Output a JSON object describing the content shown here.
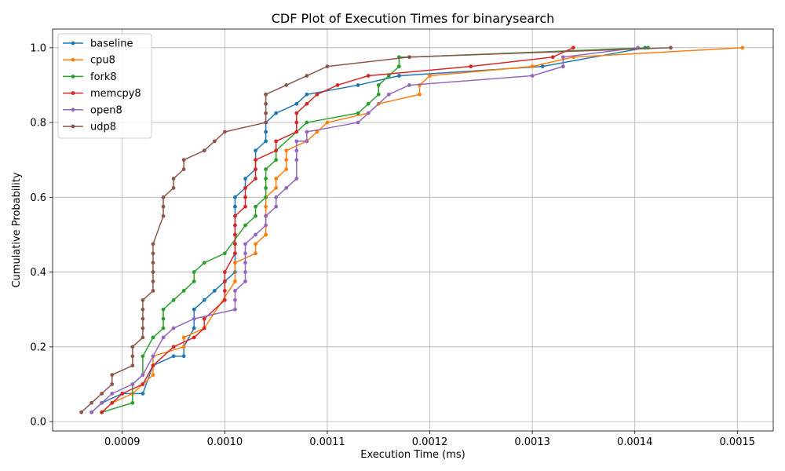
{
  "chart_data": {
    "type": "line",
    "title": "CDF Plot of Execution Times for binarysearch",
    "xlabel": "Execution Time (ms)",
    "ylabel": "Cumulative Probability",
    "xlim": [
      0.000832,
      0.001535
    ],
    "ylim": [
      -0.025,
      1.05
    ],
    "xticks": [
      0.0009,
      0.001,
      0.0011,
      0.0012,
      0.0013,
      0.0014,
      0.0015
    ],
    "xtick_labels": [
      "0.0009",
      "0.0010",
      "0.0011",
      "0.0012",
      "0.0013",
      "0.0014",
      "0.0015"
    ],
    "yticks": [
      0.0,
      0.2,
      0.4,
      0.6,
      0.8,
      1.0
    ],
    "ytick_labels": [
      "0.0",
      "0.2",
      "0.4",
      "0.6",
      "0.8",
      "1.0"
    ],
    "grid": true,
    "legend_position": "top-left",
    "series": [
      {
        "name": "baseline",
        "color": "#1f77b4",
        "x": [
          0.00087,
          0.00088,
          0.0009,
          0.00092,
          0.00093,
          0.00095,
          0.00096,
          0.00096,
          0.00097,
          0.00097,
          0.00097,
          0.00098,
          0.00099,
          0.001,
          0.00101,
          0.00101,
          0.00101,
          0.00101,
          0.00101,
          0.00101,
          0.00101,
          0.00101,
          0.00101,
          0.00101,
          0.00102,
          0.00102,
          0.00103,
          0.00103,
          0.00104,
          0.00104,
          0.00104,
          0.00104,
          0.00105,
          0.00107,
          0.00108,
          0.00113,
          0.00117,
          0.00117,
          0.00131,
          0.00141
        ],
        "y": [
          0.025,
          0.05,
          0.075,
          0.075,
          0.15,
          0.175,
          0.175,
          0.2,
          0.25,
          0.275,
          0.3,
          0.325,
          0.35,
          0.375,
          0.4,
          0.425,
          0.45,
          0.475,
          0.5,
          0.525,
          0.55,
          0.575,
          0.575,
          0.6,
          0.625,
          0.65,
          0.675,
          0.725,
          0.75,
          0.775,
          0.8,
          0.8,
          0.825,
          0.85,
          0.875,
          0.9,
          0.925,
          0.925,
          0.95,
          1.0
        ]
      },
      {
        "name": "cpu8",
        "color": "#ff7f0e",
        "x": [
          0.00088,
          0.00089,
          0.00091,
          0.00092,
          0.00093,
          0.00093,
          0.00096,
          0.00096,
          0.00098,
          0.00101,
          0.00101,
          0.00103,
          0.00103,
          0.00104,
          0.00104,
          0.00104,
          0.00104,
          0.00105,
          0.00105,
          0.00106,
          0.00106,
          0.00106,
          0.00108,
          0.00109,
          0.0011,
          0.00114,
          0.00115,
          0.00119,
          0.00119,
          0.0012,
          0.0013,
          0.00134,
          0.001505
        ],
        "y": [
          0.025,
          0.05,
          0.075,
          0.1,
          0.125,
          0.175,
          0.2,
          0.225,
          0.25,
          0.375,
          0.425,
          0.45,
          0.475,
          0.5,
          0.55,
          0.575,
          0.6,
          0.625,
          0.65,
          0.675,
          0.7,
          0.725,
          0.75,
          0.775,
          0.8,
          0.825,
          0.85,
          0.875,
          0.9,
          0.925,
          0.95,
          0.975,
          1.0
        ]
      },
      {
        "name": "fork8",
        "color": "#2ca02c",
        "x": [
          0.00088,
          0.00091,
          0.00091,
          0.00092,
          0.00092,
          0.00093,
          0.00094,
          0.00094,
          0.00094,
          0.00095,
          0.00096,
          0.00097,
          0.00097,
          0.00098,
          0.001,
          0.00102,
          0.00103,
          0.00103,
          0.00104,
          0.00104,
          0.00104,
          0.00104,
          0.00105,
          0.00105,
          0.00107,
          0.00108,
          0.00113,
          0.00114,
          0.00115,
          0.00115,
          0.00116,
          0.00117,
          0.00117,
          0.00118,
          0.001413
        ],
        "y": [
          0.025,
          0.05,
          0.1,
          0.125,
          0.175,
          0.225,
          0.25,
          0.275,
          0.3,
          0.325,
          0.35,
          0.375,
          0.4,
          0.425,
          0.45,
          0.525,
          0.55,
          0.575,
          0.6,
          0.625,
          0.65,
          0.675,
          0.7,
          0.725,
          0.775,
          0.8,
          0.825,
          0.85,
          0.875,
          0.9,
          0.925,
          0.95,
          0.975,
          0.975,
          1.0
        ]
      },
      {
        "name": "memcpy8",
        "color": "#d62728",
        "x": [
          0.00088,
          0.00089,
          0.0009,
          0.00092,
          0.00093,
          0.00095,
          0.00097,
          0.00098,
          0.00098,
          0.001,
          0.001,
          0.001,
          0.001,
          0.00101,
          0.00101,
          0.00101,
          0.00101,
          0.00101,
          0.00102,
          0.00102,
          0.00102,
          0.00103,
          0.00103,
          0.00103,
          0.00105,
          0.00105,
          0.00107,
          0.00107,
          0.00107,
          0.00108,
          0.00109,
          0.00111,
          0.00114,
          0.00124,
          0.00132,
          0.00134
        ],
        "y": [
          0.025,
          0.05,
          0.075,
          0.1,
          0.15,
          0.2,
          0.225,
          0.25,
          0.275,
          0.325,
          0.35,
          0.375,
          0.4,
          0.45,
          0.475,
          0.5,
          0.525,
          0.55,
          0.575,
          0.6,
          0.625,
          0.65,
          0.675,
          0.7,
          0.725,
          0.75,
          0.775,
          0.8,
          0.825,
          0.85,
          0.875,
          0.9,
          0.925,
          0.95,
          0.975,
          1.0
        ]
      },
      {
        "name": "open8",
        "color": "#9467bd",
        "x": [
          0.00087,
          0.00088,
          0.00089,
          0.00091,
          0.00092,
          0.00093,
          0.00094,
          0.00095,
          0.00097,
          0.00101,
          0.00101,
          0.00101,
          0.00102,
          0.00102,
          0.00102,
          0.00102,
          0.00102,
          0.00103,
          0.00104,
          0.00104,
          0.00105,
          0.00105,
          0.00106,
          0.00107,
          0.00107,
          0.00107,
          0.00107,
          0.00108,
          0.00108,
          0.00113,
          0.00114,
          0.00116,
          0.00118,
          0.0013,
          0.00133,
          0.00133,
          0.001403
        ],
        "y": [
          0.025,
          0.05,
          0.075,
          0.1,
          0.125,
          0.175,
          0.225,
          0.25,
          0.275,
          0.3,
          0.325,
          0.35,
          0.375,
          0.4,
          0.425,
          0.45,
          0.475,
          0.5,
          0.525,
          0.55,
          0.575,
          0.6,
          0.625,
          0.65,
          0.7,
          0.725,
          0.75,
          0.75,
          0.775,
          0.8,
          0.825,
          0.875,
          0.9,
          0.925,
          0.95,
          0.975,
          1.0
        ]
      },
      {
        "name": "udp8",
        "color": "#8c564b",
        "x": [
          0.00086,
          0.00087,
          0.00088,
          0.00089,
          0.00089,
          0.00091,
          0.00091,
          0.00091,
          0.00092,
          0.00092,
          0.00092,
          0.00092,
          0.00092,
          0.00093,
          0.00093,
          0.00093,
          0.00093,
          0.00093,
          0.00093,
          0.00094,
          0.00094,
          0.00094,
          0.00095,
          0.00095,
          0.00096,
          0.00096,
          0.00098,
          0.00099,
          0.001,
          0.00104,
          0.00104,
          0.00104,
          0.00104,
          0.00104,
          0.00106,
          0.00108,
          0.0011,
          0.00118,
          0.001435
        ],
        "y": [
          0.025,
          0.05,
          0.075,
          0.1,
          0.125,
          0.15,
          0.175,
          0.2,
          0.225,
          0.25,
          0.275,
          0.3,
          0.325,
          0.35,
          0.375,
          0.4,
          0.425,
          0.45,
          0.475,
          0.55,
          0.575,
          0.6,
          0.625,
          0.65,
          0.675,
          0.7,
          0.725,
          0.75,
          0.775,
          0.8,
          0.825,
          0.85,
          0.875,
          0.875,
          0.9,
          0.925,
          0.95,
          0.975,
          1.0
        ]
      }
    ]
  }
}
